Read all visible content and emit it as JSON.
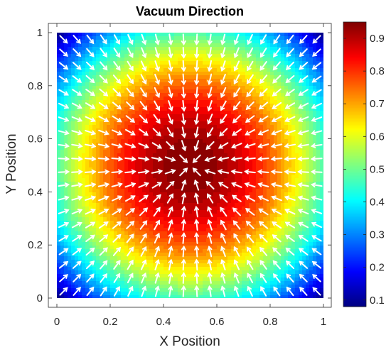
{
  "chart_data": {
    "type": "heatmap",
    "subtype": "filled-contour-with-quiver",
    "title": "Vacuum Direction",
    "xlabel": "X Position",
    "ylabel": "Y Position",
    "xlim": [
      0,
      1
    ],
    "ylim": [
      0,
      1
    ],
    "xticks": [
      "0",
      "0.2",
      "0.4",
      "0.6",
      "0.8",
      "1"
    ],
    "xtick_values": [
      0,
      0.2,
      0.4,
      0.6,
      0.8,
      1
    ],
    "yticks": [
      "0",
      "0.2",
      "0.4",
      "0.6",
      "0.8",
      "1"
    ],
    "ytick_values": [
      0,
      0.2,
      0.4,
      0.6,
      0.8,
      1
    ],
    "field": {
      "description": "radial falloff from center",
      "center": [
        0.5,
        0.5
      ],
      "max_value": 0.95,
      "min_value": 0.08
    },
    "quiver": {
      "color": "#ffffff",
      "grid_count": 20,
      "direction": "pointing toward center"
    },
    "colorbar": {
      "colormap": "jet",
      "range": [
        0.08,
        0.95
      ],
      "ticks": [
        "0.1",
        "0.2",
        "0.3",
        "0.4",
        "0.5",
        "0.6",
        "0.7",
        "0.8",
        "0.9"
      ],
      "tick_values": [
        0.1,
        0.2,
        0.3,
        0.4,
        0.5,
        0.6,
        0.7,
        0.8,
        0.9
      ]
    },
    "grid": false
  }
}
